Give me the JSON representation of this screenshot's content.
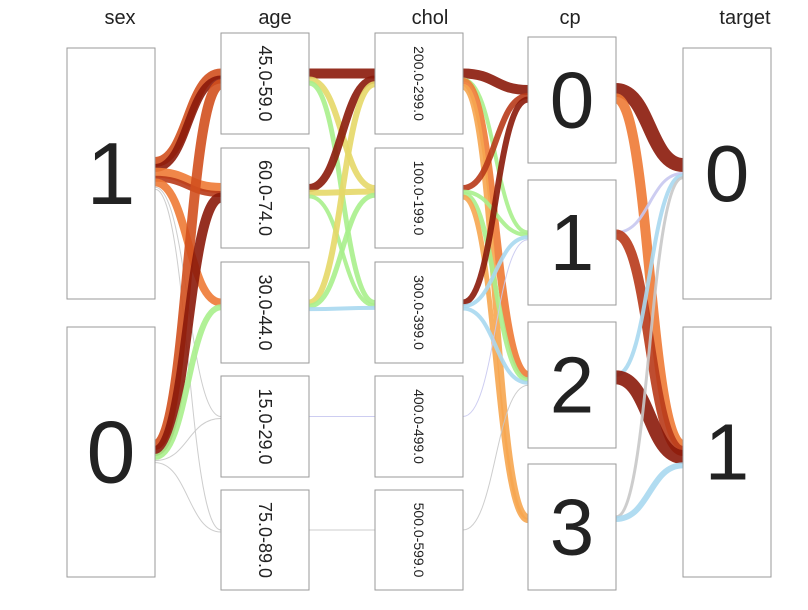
{
  "chart_data": {
    "type": "parallel-categories",
    "dimensions": [
      {
        "name": "sex",
        "categories": [
          "1",
          "0"
        ]
      },
      {
        "name": "age",
        "categories": [
          "45.0-59.0",
          "60.0-74.0",
          "30.0-44.0",
          "15.0-29.0",
          "75.0-89.0"
        ]
      },
      {
        "name": "chol",
        "categories": [
          "200.0-299.0",
          "100.0-199.0",
          "300.0-399.0",
          "400.0-499.0",
          "500.0-599.0"
        ]
      },
      {
        "name": "cp",
        "categories": [
          "0",
          "1",
          "2",
          "3"
        ]
      },
      {
        "name": "target",
        "categories": [
          "0",
          "1"
        ]
      }
    ],
    "colors": {
      "dark_red": "#8b1a0a",
      "red_brown": "#b83a1a",
      "red_orange": "#d2501e",
      "orange": "#ee7a35",
      "light_orange": "#f6a650",
      "yellow": "#e6d868",
      "light_green": "#a8f08c",
      "light_blue": "#a8d8f0",
      "lavender": "#c8c8f0",
      "gray": "#c8c8c8"
    },
    "flows": [
      {
        "from": [
          0,
          "1"
        ],
        "to": [
          1,
          "45.0-59.0"
        ],
        "width": 10,
        "color": "red_orange"
      },
      {
        "from": [
          0,
          "1"
        ],
        "to": [
          1,
          "45.0-59.0"
        ],
        "width": 8,
        "color": "dark_red"
      },
      {
        "from": [
          0,
          "1"
        ],
        "to": [
          1,
          "60.0-74.0"
        ],
        "width": 10,
        "color": "orange"
      },
      {
        "from": [
          0,
          "1"
        ],
        "to": [
          1,
          "60.0-74.0"
        ],
        "width": 6,
        "color": "red_brown"
      },
      {
        "from": [
          0,
          "1"
        ],
        "to": [
          1,
          "30.0-44.0"
        ],
        "width": 8,
        "color": "orange"
      },
      {
        "from": [
          0,
          "1"
        ],
        "to": [
          1,
          "15.0-29.0"
        ],
        "width": 1,
        "color": "gray"
      },
      {
        "from": [
          0,
          "1"
        ],
        "to": [
          1,
          "75.0-89.0"
        ],
        "width": 1,
        "color": "gray"
      },
      {
        "from": [
          0,
          "0"
        ],
        "to": [
          1,
          "45.0-59.0"
        ],
        "width": 10,
        "color": "red_orange"
      },
      {
        "from": [
          0,
          "0"
        ],
        "to": [
          1,
          "60.0-74.0"
        ],
        "width": 10,
        "color": "dark_red"
      },
      {
        "from": [
          0,
          "0"
        ],
        "to": [
          1,
          "30.0-44.0"
        ],
        "width": 6,
        "color": "light_green"
      },
      {
        "from": [
          0,
          "0"
        ],
        "to": [
          1,
          "15.0-29.0"
        ],
        "width": 1,
        "color": "gray"
      },
      {
        "from": [
          0,
          "0"
        ],
        "to": [
          1,
          "75.0-89.0"
        ],
        "width": 1,
        "color": "gray"
      },
      {
        "from": [
          1,
          "45.0-59.0"
        ],
        "to": [
          2,
          "200.0-299.0"
        ],
        "width": 10,
        "color": "dark_red"
      },
      {
        "from": [
          1,
          "45.0-59.0"
        ],
        "to": [
          2,
          "100.0-199.0"
        ],
        "width": 6,
        "color": "yellow"
      },
      {
        "from": [
          1,
          "45.0-59.0"
        ],
        "to": [
          2,
          "300.0-399.0"
        ],
        "width": 5,
        "color": "light_green"
      },
      {
        "from": [
          1,
          "60.0-74.0"
        ],
        "to": [
          2,
          "200.0-299.0"
        ],
        "width": 8,
        "color": "dark_red"
      },
      {
        "from": [
          1,
          "60.0-74.0"
        ],
        "to": [
          2,
          "100.0-199.0"
        ],
        "width": 6,
        "color": "yellow"
      },
      {
        "from": [
          1,
          "60.0-74.0"
        ],
        "to": [
          2,
          "300.0-399.0"
        ],
        "width": 4,
        "color": "light_green"
      },
      {
        "from": [
          1,
          "30.0-44.0"
        ],
        "to": [
          2,
          "200.0-299.0"
        ],
        "width": 6,
        "color": "yellow"
      },
      {
        "from": [
          1,
          "30.0-44.0"
        ],
        "to": [
          2,
          "100.0-199.0"
        ],
        "width": 5,
        "color": "light_green"
      },
      {
        "from": [
          1,
          "30.0-44.0"
        ],
        "to": [
          2,
          "300.0-399.0"
        ],
        "width": 4,
        "color": "light_blue"
      },
      {
        "from": [
          1,
          "15.0-29.0"
        ],
        "to": [
          2,
          "400.0-499.0"
        ],
        "width": 1,
        "color": "lavender"
      },
      {
        "from": [
          1,
          "75.0-89.0"
        ],
        "to": [
          2,
          "500.0-599.0"
        ],
        "width": 1,
        "color": "gray"
      },
      {
        "from": [
          2,
          "200.0-299.0"
        ],
        "to": [
          3,
          "0"
        ],
        "width": 10,
        "color": "dark_red"
      },
      {
        "from": [
          2,
          "200.0-299.0"
        ],
        "to": [
          3,
          "1"
        ],
        "width": 4,
        "color": "light_green"
      },
      {
        "from": [
          2,
          "200.0-299.0"
        ],
        "to": [
          3,
          "2"
        ],
        "width": 8,
        "color": "orange"
      },
      {
        "from": [
          2,
          "200.0-299.0"
        ],
        "to": [
          3,
          "3"
        ],
        "width": 6,
        "color": "light_orange"
      },
      {
        "from": [
          2,
          "100.0-199.0"
        ],
        "to": [
          3,
          "0"
        ],
        "width": 6,
        "color": "red_brown"
      },
      {
        "from": [
          2,
          "100.0-199.0"
        ],
        "to": [
          3,
          "1"
        ],
        "width": 4,
        "color": "light_green"
      },
      {
        "from": [
          2,
          "100.0-199.0"
        ],
        "to": [
          3,
          "2"
        ],
        "width": 5,
        "color": "light_green"
      },
      {
        "from": [
          2,
          "100.0-199.0"
        ],
        "to": [
          3,
          "3"
        ],
        "width": 5,
        "color": "light_orange"
      },
      {
        "from": [
          2,
          "300.0-399.0"
        ],
        "to": [
          3,
          "0"
        ],
        "width": 6,
        "color": "dark_red"
      },
      {
        "from": [
          2,
          "300.0-399.0"
        ],
        "to": [
          3,
          "1"
        ],
        "width": 4,
        "color": "light_blue"
      },
      {
        "from": [
          2,
          "300.0-399.0"
        ],
        "to": [
          3,
          "2"
        ],
        "width": 4,
        "color": "light_blue"
      },
      {
        "from": [
          2,
          "400.0-499.0"
        ],
        "to": [
          3,
          "1"
        ],
        "width": 1,
        "color": "lavender"
      },
      {
        "from": [
          2,
          "500.0-599.0"
        ],
        "to": [
          3,
          "2"
        ],
        "width": 1,
        "color": "gray"
      },
      {
        "from": [
          3,
          "0"
        ],
        "to": [
          4,
          "0"
        ],
        "width": 14,
        "color": "dark_red"
      },
      {
        "from": [
          3,
          "0"
        ],
        "to": [
          4,
          "1"
        ],
        "width": 10,
        "color": "orange"
      },
      {
        "from": [
          3,
          "1"
        ],
        "to": [
          4,
          "0"
        ],
        "width": 3,
        "color": "lavender"
      },
      {
        "from": [
          3,
          "1"
        ],
        "to": [
          4,
          "1"
        ],
        "width": 10,
        "color": "red_brown"
      },
      {
        "from": [
          3,
          "2"
        ],
        "to": [
          4,
          "0"
        ],
        "width": 4,
        "color": "light_blue"
      },
      {
        "from": [
          3,
          "2"
        ],
        "to": [
          4,
          "1"
        ],
        "width": 14,
        "color": "dark_red"
      },
      {
        "from": [
          3,
          "3"
        ],
        "to": [
          4,
          "0"
        ],
        "width": 3,
        "color": "gray"
      },
      {
        "from": [
          3,
          "3"
        ],
        "to": [
          4,
          "1"
        ],
        "width": 6,
        "color": "light_blue"
      }
    ]
  }
}
